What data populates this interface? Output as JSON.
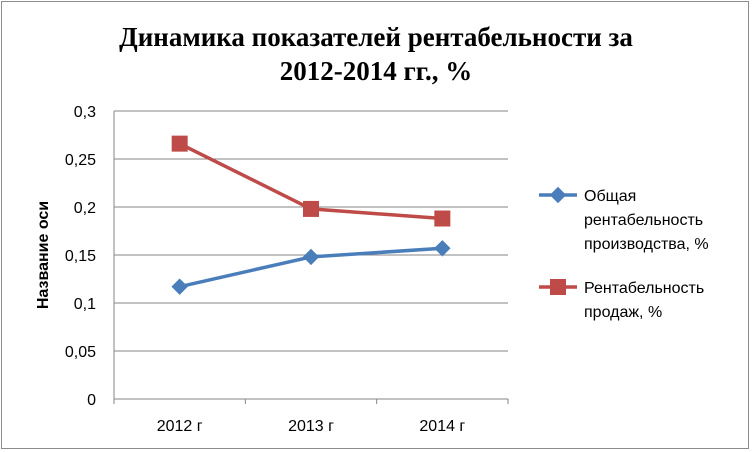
{
  "chart_data": {
    "type": "line",
    "title_lines": [
      "Динамика показателей рентабельности за",
      "2012-2014 гг., %"
    ],
    "ylabel": "Название оси",
    "xlabel": "",
    "categories": [
      "2012 г",
      "2013 г",
      "2014 г"
    ],
    "ylim": [
      0,
      0.3
    ],
    "yticks": [
      "0",
      "0,05",
      "0,1",
      "0,15",
      "0,2",
      "0,25",
      "0,3"
    ],
    "ytick_values": [
      0,
      0.05,
      0.1,
      0.15,
      0.2,
      0.25,
      0.3
    ],
    "grid": true,
    "legend_position": "right",
    "series": [
      {
        "name_lines": [
          "Общая",
          "рентабельность",
          "производства, %"
        ],
        "values": [
          0.117,
          0.148,
          0.157
        ],
        "color": "#4a7ebb",
        "marker": "diamond"
      },
      {
        "name_lines": [
          "Рентабельность",
          "продаж, %"
        ],
        "values": [
          0.266,
          0.198,
          0.188
        ],
        "color": "#be4b48",
        "marker": "square"
      }
    ]
  }
}
